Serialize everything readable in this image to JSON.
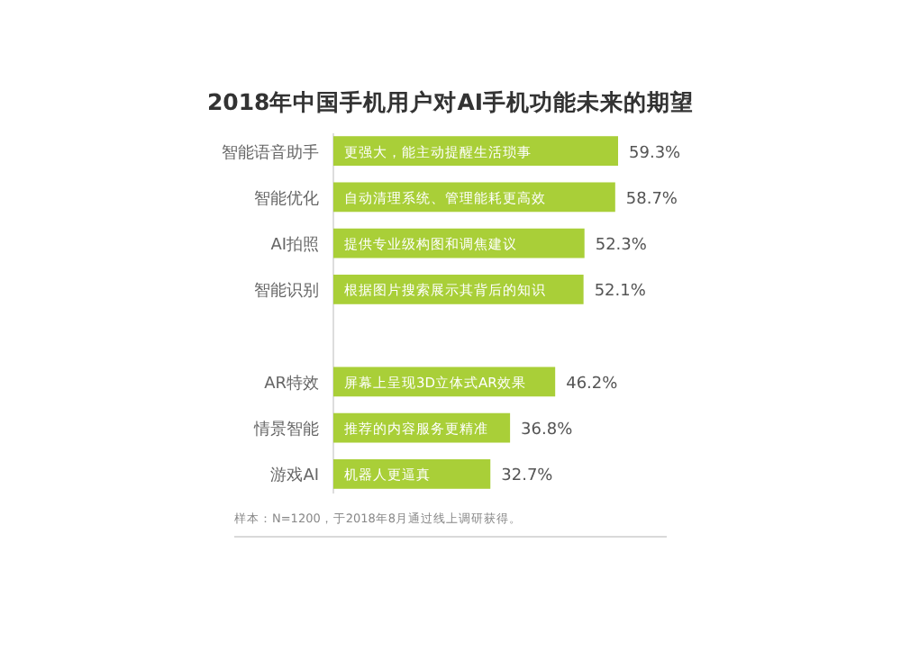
{
  "chart_data": {
    "type": "bar",
    "orientation": "horizontal",
    "title": "2018年中国手机用户对AI手机功能未来的期望",
    "categories": [
      "智能语音助手",
      "智能优化",
      "AI拍照",
      "智能识别",
      null,
      "AR特效",
      "情景智能",
      "游戏AI"
    ],
    "values": [
      59.3,
      58.7,
      52.3,
      52.1,
      null,
      46.2,
      36.8,
      32.7
    ],
    "value_labels": [
      "59.3%",
      "58.7%",
      "52.3%",
      "52.1%",
      null,
      "46.2%",
      "36.8%",
      "32.7%"
    ],
    "color": "#a9cf38",
    "annotations": [
      {
        "text": "更强大，能主动提醒生活琐事",
        "y": "智能语音助手"
      },
      {
        "text": "自动清理系统、管理能耗更高效",
        "y": "智能优化"
      },
      {
        "text": "提供专业级构图和调焦建议",
        "y": "AI拍照"
      },
      {
        "text": "根据图片搜索展示其背后的知识",
        "y": "智能识别"
      },
      {
        "text": "屏幕上呈现3D立体式AR效果",
        "y": "AR特效"
      },
      {
        "text": "推荐的内容服务更精准",
        "y": "情景智能"
      },
      {
        "text": "机器人更逼真",
        "y": "游戏AI"
      },
      "样本：N=1200，于2018年8月通过线上调研获得。"
    ]
  }
}
